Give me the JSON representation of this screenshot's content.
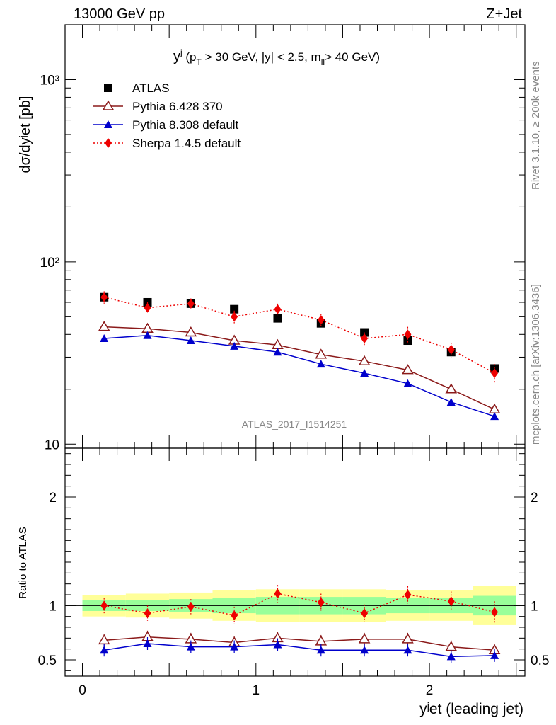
{
  "header": {
    "left": "13000 GeV pp",
    "right": "Z+Jet"
  },
  "side_labels": {
    "rivet": "Rivet 3.1.10, ≥ 200k events",
    "mcplots": "mcplots.cern.ch [arXiv:1306.3436]"
  },
  "watermark": "ATLAS_2017_I1514251",
  "chart_data": [
    {
      "type": "scatter",
      "title_main": "y",
      "title_sup": "j",
      "title_part1": " (p",
      "title_sub1": "T",
      "title_part2": " > 30 GeV, |y| < 2.5, m",
      "title_sub2": "ll",
      "title_part3": "> 40 GeV)",
      "ylabel": "dσ/dyʲet [pb]",
      "ylog": true,
      "ylim": [
        9.5,
        2000
      ],
      "xlim": [
        -0.1,
        2.55
      ],
      "y_tick_labels": [
        "10",
        "10²",
        "10³"
      ],
      "x": [
        0.125,
        0.375,
        0.625,
        0.875,
        1.125,
        1.375,
        1.625,
        1.875,
        2.125,
        2.375
      ],
      "series": [
        {
          "name": "ATLAS",
          "color": "#000000",
          "marker": "square",
          "values": [
            64,
            60,
            59,
            55,
            49,
            46,
            41,
            37,
            32,
            26
          ]
        },
        {
          "name": "Pythia 6.428 370",
          "color": "#8b1a1a",
          "marker": "open-triangle",
          "values": [
            44,
            43,
            41,
            37,
            35,
            31,
            28.5,
            25.5,
            20,
            15.5
          ]
        },
        {
          "name": "Pythia 8.308 default",
          "color": "#0000cc",
          "marker": "filled-triangle",
          "values": [
            38,
            39.5,
            37,
            34.5,
            32,
            27.5,
            24.5,
            21.5,
            17,
            14.2
          ]
        },
        {
          "name": "Sherpa 1.4.5 default",
          "color": "#ee0000",
          "marker": "diamond",
          "values": [
            64,
            56,
            59,
            50,
            55,
            48,
            38,
            40,
            33,
            24.5
          ],
          "errors": [
            5,
            4,
            4,
            4,
            4,
            4,
            3,
            4,
            3,
            3
          ]
        }
      ]
    },
    {
      "type": "scatter",
      "ylabel": "Ratio to ATLAS",
      "xlabel": "yʲet (leading jet)",
      "ylim": [
        0.35,
        2.45
      ],
      "xlim": [
        -0.1,
        2.55
      ],
      "y_tick_labels": [
        "0.5",
        "1",
        "2"
      ],
      "x_tick_labels": [
        "0",
        "1",
        "2"
      ],
      "bin_edges": [
        0,
        0.25,
        0.5,
        0.75,
        1.0,
        1.25,
        1.5,
        1.75,
        2.0,
        2.25,
        2.5
      ],
      "band_green": [
        [
          0.95,
          1.05
        ],
        [
          0.95,
          1.05
        ],
        [
          0.94,
          1.06
        ],
        [
          0.93,
          1.07
        ],
        [
          0.92,
          1.08
        ],
        [
          0.92,
          1.08
        ],
        [
          0.92,
          1.08
        ],
        [
          0.93,
          1.07
        ],
        [
          0.93,
          1.07
        ],
        [
          0.91,
          1.09
        ]
      ],
      "band_yellow": [
        [
          0.9,
          1.1
        ],
        [
          0.89,
          1.11
        ],
        [
          0.88,
          1.12
        ],
        [
          0.86,
          1.14
        ],
        [
          0.85,
          1.15
        ],
        [
          0.85,
          1.15
        ],
        [
          0.85,
          1.15
        ],
        [
          0.86,
          1.14
        ],
        [
          0.86,
          1.14
        ],
        [
          0.82,
          1.18
        ]
      ],
      "series": [
        {
          "name": "Pythia 6.428 370",
          "color": "#8b1a1a",
          "marker": "open-triangle",
          "values": [
            0.68,
            0.71,
            0.69,
            0.66,
            0.7,
            0.67,
            0.69,
            0.69,
            0.62,
            0.59
          ]
        },
        {
          "name": "Pythia 8.308 default",
          "color": "#0000cc",
          "marker": "filled-triangle",
          "values": [
            0.59,
            0.65,
            0.62,
            0.62,
            0.64,
            0.59,
            0.59,
            0.59,
            0.53,
            0.54
          ]
        },
        {
          "name": "Sherpa 1.4.5 default",
          "color": "#ee0000",
          "marker": "diamond",
          "values": [
            1.0,
            0.93,
            0.99,
            0.91,
            1.11,
            1.03,
            0.93,
            1.1,
            1.04,
            0.94
          ],
          "errors": [
            0.07,
            0.07,
            0.07,
            0.08,
            0.08,
            0.08,
            0.08,
            0.08,
            0.09,
            0.1
          ]
        }
      ]
    }
  ]
}
